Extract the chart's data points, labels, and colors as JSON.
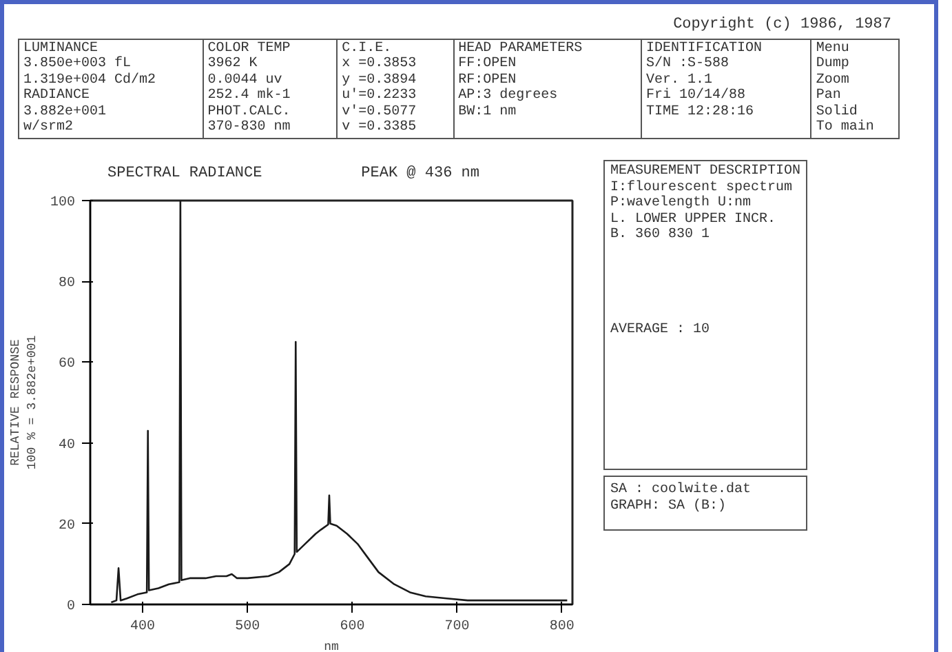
{
  "chart_data": {
    "type": "line",
    "title": "SPECTRAL RADIANCE",
    "xlabel": "nm",
    "ylabel": "RELATIVE RESPONSE\n100 % = 3.882e+001",
    "x": [
      370,
      375,
      377,
      379,
      385,
      395,
      404,
      405,
      406,
      415,
      425,
      435,
      436,
      437,
      445,
      460,
      470,
      480,
      485,
      490,
      500,
      520,
      530,
      540,
      545,
      546,
      547,
      555,
      565,
      570,
      577,
      578,
      579,
      585,
      595,
      605,
      615,
      625,
      640,
      655,
      670,
      690,
      710,
      730,
      760,
      790,
      805
    ],
    "values": [
      0.5,
      1,
      9,
      1,
      1.5,
      2.5,
      3,
      43,
      3.5,
      4,
      5,
      5.5,
      100,
      6,
      6.5,
      6.5,
      7,
      7,
      7.5,
      6.5,
      6.5,
      7,
      8,
      10,
      12.5,
      65,
      13,
      15,
      17.5,
      18.5,
      19.8,
      27,
      20,
      19.5,
      17.5,
      15,
      11.5,
      8,
      5,
      3,
      2,
      1.5,
      1,
      1,
      1,
      1,
      1
    ],
    "color": "#1a1a1a",
    "xlim": [
      350,
      810
    ],
    "ylim": [
      0,
      100
    ],
    "xticks": [
      400,
      500,
      600,
      700,
      800
    ],
    "yticks": [
      0,
      20,
      40,
      60,
      80,
      100
    ],
    "grid": false,
    "marker": "none",
    "line_style": "solid",
    "annotations": [
      "PEAK @ 436 nm",
      "Copyright (c) 1986, 1987",
      "LUMINANCE",
      "3.850e+003 fL",
      "1.319e+004 Cd/m2",
      "RADIANCE",
      "3.882e+001",
      "w/srm2",
      "COLOR TEMP",
      "3962 K",
      "0.0044 uv",
      "252.4 mk-1",
      "PHOT.CALC.",
      "370-830 nm",
      "C.I.E.",
      "x =0.3853",
      "y =0.3894",
      "u'=0.2233",
      "v'=0.5077",
      "v =0.3385",
      "HEAD PARAMETERS",
      "FF:OPEN",
      "RF:OPEN",
      "AP:3 degrees",
      "BW:1 nm",
      "IDENTIFICATION",
      "S/N :S-588",
      "Ver. 1.1",
      "Fri 10/14/88",
      "TIME 12:28:16",
      "Menu",
      "Dump",
      "Zoom",
      "Pan",
      "Solid",
      "To main",
      "MEASUREMENT DESCRIPTION",
      "I:flourescent spectrum",
      "P:wavelength U:nm",
      "L. LOWER UPPER INCR.",
      "B. 360 830 1",
      "AVERAGE : 10",
      "SA : coolwite.dat",
      "GRAPH: SA (B:)"
    ]
  }
}
